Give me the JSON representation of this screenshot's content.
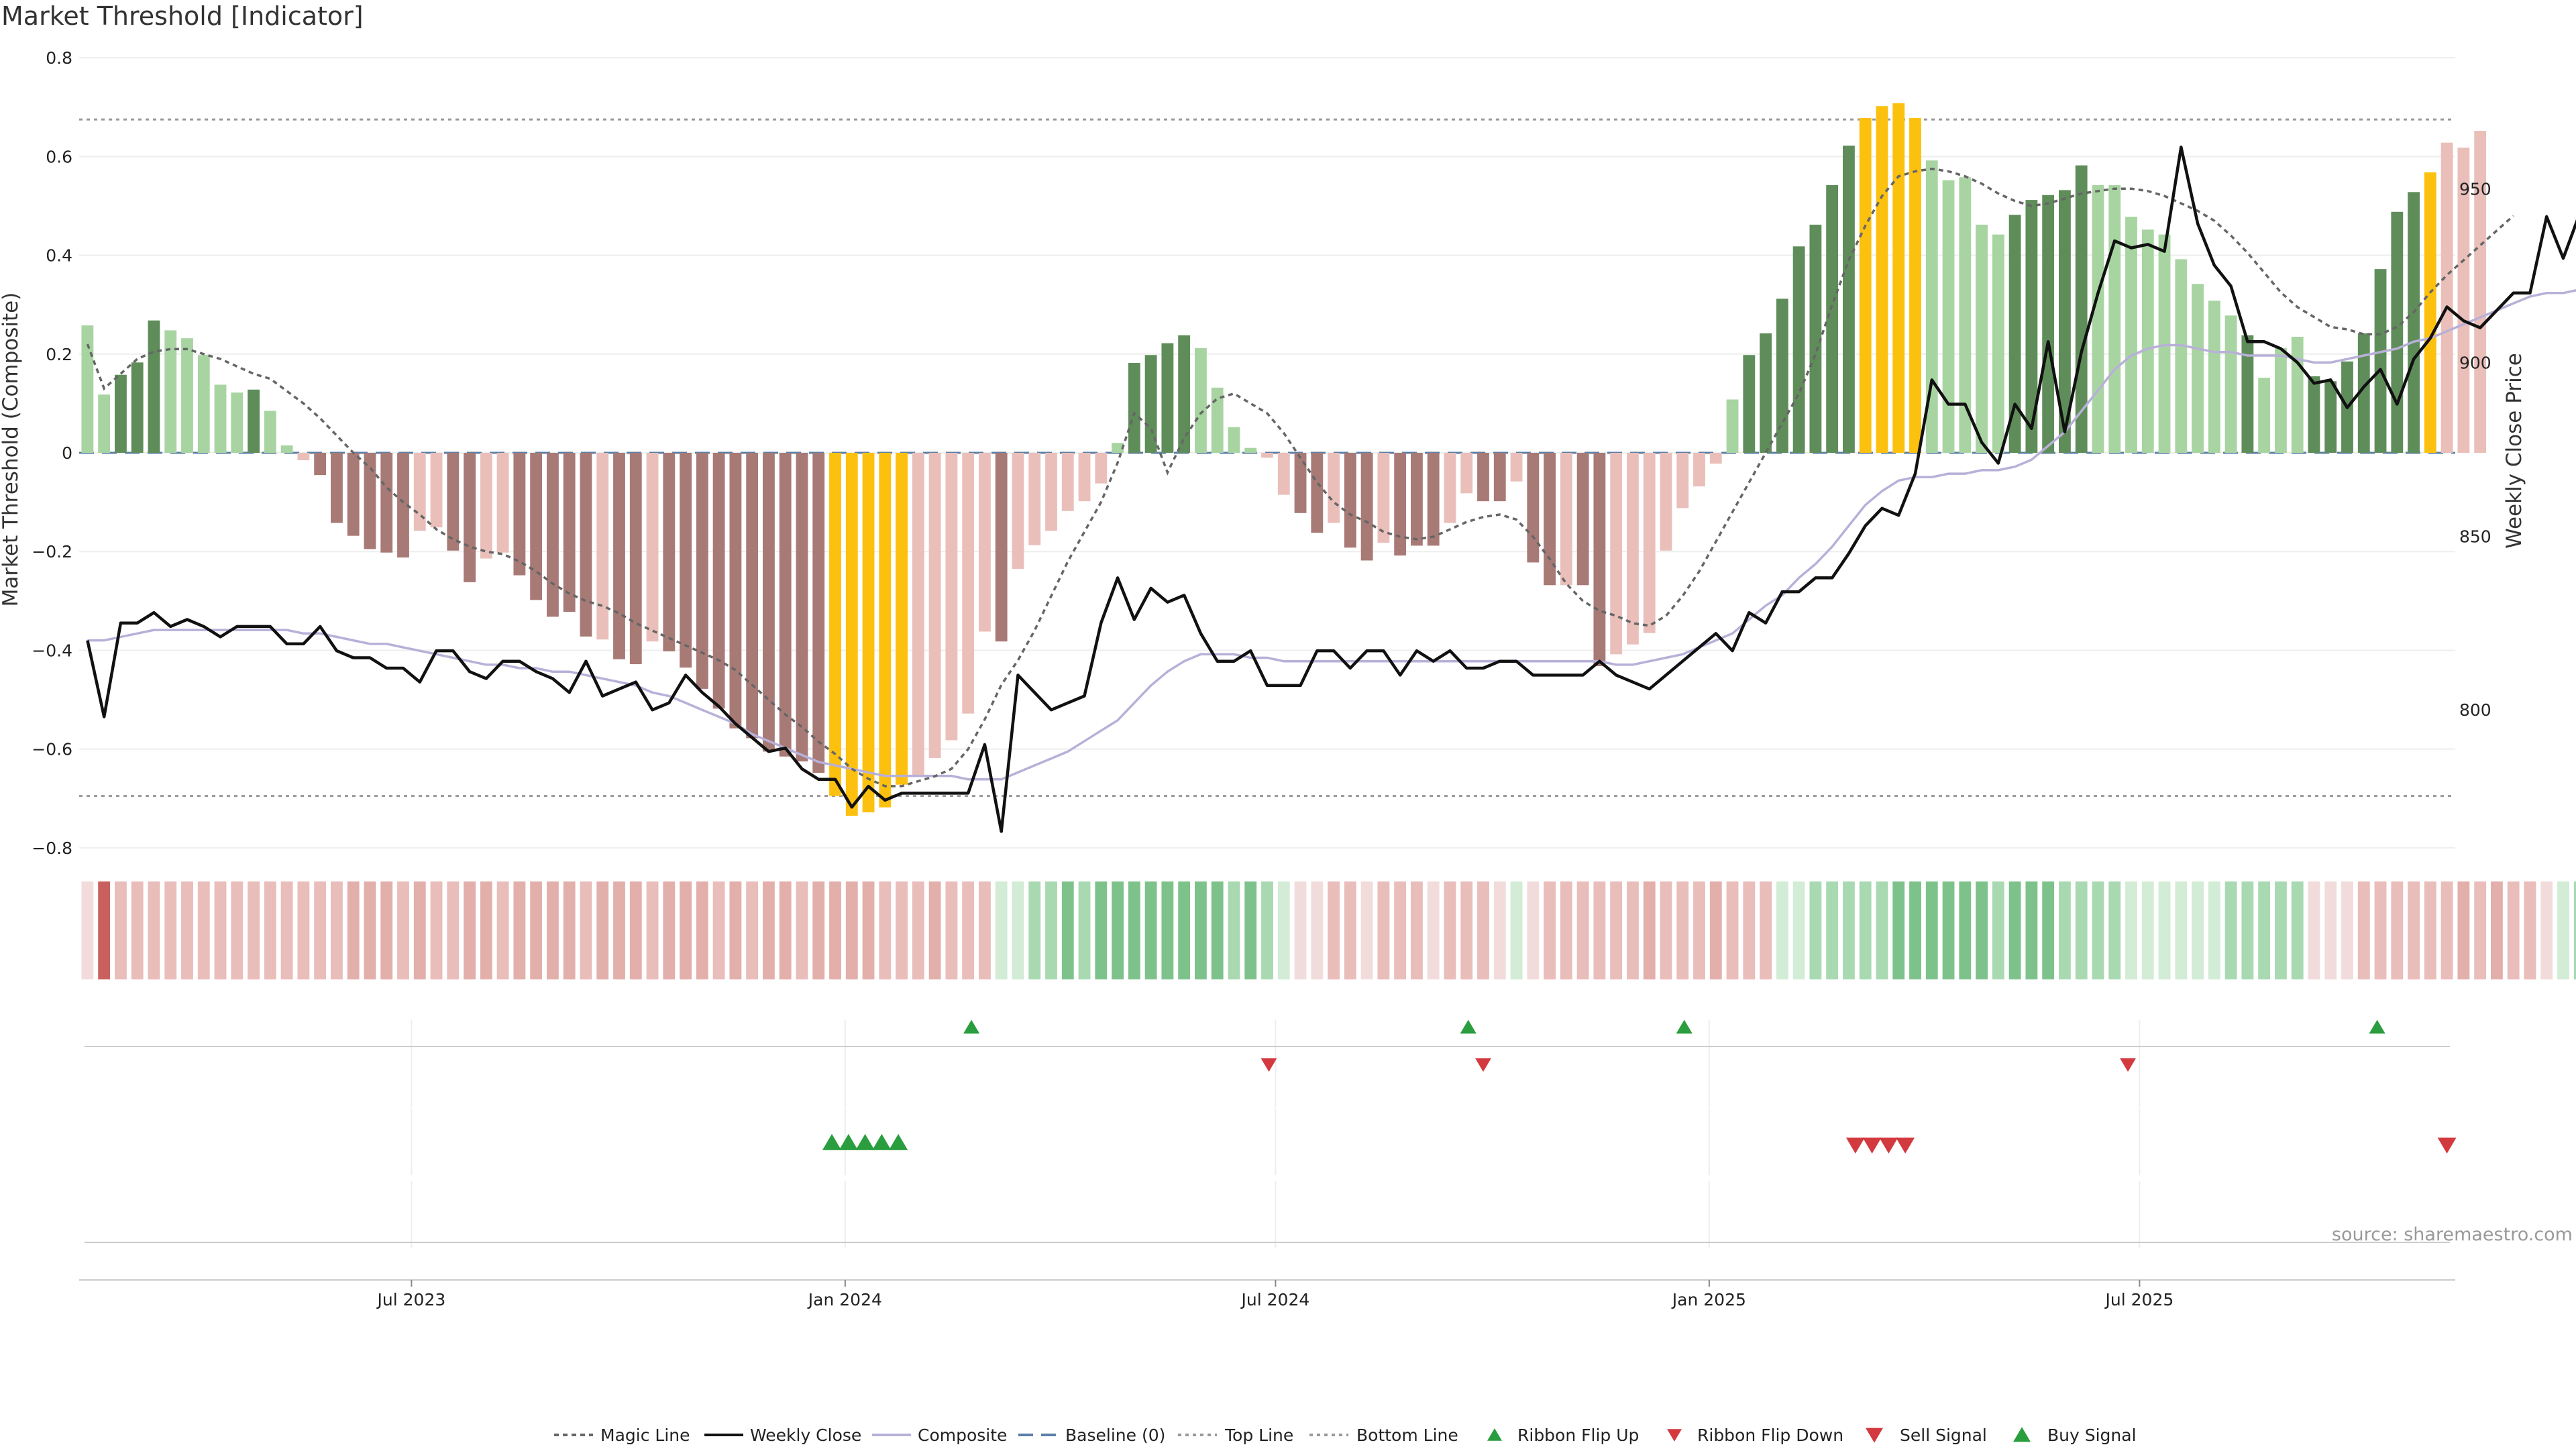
{
  "title": "Market Threshold [Indicator]",
  "source": "source: sharemaestro.com",
  "colors": {
    "pos_strong": "#5f8d5a",
    "pos_weak": "#a8d4a2",
    "neg_strong": "#a87a76",
    "neg_weak": "#eabfba",
    "extreme": "#fcc10f",
    "magic": "#666666",
    "price": "#111111",
    "composite": "#b8b0d8",
    "baseline": "#5b7fa6",
    "threshold": "#999999",
    "buy": "#2a9d3e",
    "sell": "#d33a3f",
    "ribbon_pos": [
      "#d2ecd5",
      "#a9d9b1",
      "#7ec28b"
    ],
    "ribbon_neg": [
      "#f2dcdb",
      "#e9bdba",
      "#c9605e"
    ]
  },
  "chart_data": {
    "type": "bar",
    "title": "Market Threshold [Indicator]",
    "ylabel": "Market Threshold (Composite)",
    "ylabel_right": "Weekly Close Price",
    "ylim": [
      -0.83,
      0.83
    ],
    "ylim_right": [
      756,
      992
    ],
    "yticks": [
      "0.8",
      "0.6",
      "0.4",
      "0.2",
      "0",
      "−0.2",
      "−0.4",
      "−0.6",
      "−0.8"
    ],
    "yticks_right": [
      "950",
      "900",
      "850",
      "800"
    ],
    "x_start_week": 0,
    "x_end_week": 142,
    "xticks": [
      {
        "label": "Jul 2023",
        "week": 19.5
      },
      {
        "label": "Jan 2024",
        "week": 45.6
      },
      {
        "label": "Jul 2024",
        "week": 71.5
      },
      {
        "label": "Jan 2025",
        "week": 97.6
      },
      {
        "label": "Jul 2025",
        "week": 123.5
      }
    ],
    "threshold_lines": {
      "top": 0.675,
      "bottom": -0.695,
      "baseline": 0
    },
    "composite": [
      0.258,
      0.118,
      0.158,
      0.183,
      0.268,
      0.248,
      0.232,
      0.198,
      0.138,
      0.122,
      0.128,
      0.085,
      0.015,
      -0.015,
      -0.045,
      -0.142,
      -0.168,
      -0.195,
      -0.202,
      -0.212,
      -0.158,
      -0.151,
      -0.198,
      -0.262,
      -0.214,
      -0.202,
      -0.248,
      -0.298,
      -0.332,
      -0.322,
      -0.372,
      -0.378,
      -0.418,
      -0.428,
      -0.382,
      -0.402,
      -0.435,
      -0.478,
      -0.518,
      -0.558,
      -0.578,
      -0.605,
      -0.615,
      -0.625,
      -0.648,
      -0.695,
      -0.735,
      -0.728,
      -0.718,
      -0.672,
      -0.655,
      -0.618,
      -0.582,
      -0.528,
      -0.362,
      -0.382,
      -0.235,
      -0.187,
      -0.158,
      -0.118,
      -0.098,
      -0.062,
      0.02,
      0.182,
      0.198,
      0.222,
      0.238,
      0.212,
      0.132,
      0.052,
      0.01,
      -0.01,
      -0.085,
      -0.122,
      -0.162,
      -0.142,
      -0.192,
      -0.218,
      -0.182,
      -0.208,
      -0.188,
      -0.188,
      -0.142,
      -0.082,
      -0.098,
      -0.098,
      -0.058,
      -0.222,
      -0.268,
      -0.268,
      -0.268,
      -0.432,
      -0.408,
      -0.388,
      -0.365,
      -0.198,
      -0.112,
      -0.068,
      -0.022,
      0.108,
      0.198,
      0.242,
      0.312,
      0.418,
      0.462,
      0.542,
      0.622,
      0.678,
      0.702,
      0.708,
      0.678,
      0.592,
      0.552,
      0.558,
      0.462,
      0.442,
      0.482,
      0.512,
      0.522,
      0.532,
      0.582,
      0.542,
      0.542,
      0.478,
      0.452,
      0.442,
      0.392,
      0.342,
      0.308,
      0.278,
      0.238,
      0.152,
      0.212,
      0.235,
      0.155,
      0.145,
      0.185,
      0.242,
      0.372,
      0.488,
      0.528,
      0.568,
      0.628,
      0.618,
      0.652
    ],
    "bar_class": [
      "pw",
      "pw",
      "ps",
      "ps",
      "ps",
      "pw",
      "pw",
      "pw",
      "pw",
      "pw",
      "ps",
      "pw",
      "pw",
      "nw",
      "ns",
      "ns",
      "ns",
      "ns",
      "ns",
      "ns",
      "nw",
      "nw",
      "ns",
      "ns",
      "nw",
      "nw",
      "ns",
      "ns",
      "ns",
      "ns",
      "ns",
      "nw",
      "ns",
      "ns",
      "nw",
      "ns",
      "ns",
      "ns",
      "ns",
      "ns",
      "ns",
      "ns",
      "ns",
      "ns",
      "ns",
      "x",
      "x",
      "x",
      "x",
      "x",
      "nw",
      "nw",
      "nw",
      "nw",
      "nw",
      "ns",
      "nw",
      "nw",
      "nw",
      "nw",
      "nw",
      "nw",
      "pw",
      "ps",
      "ps",
      "ps",
      "ps",
      "pw",
      "pw",
      "pw",
      "pw",
      "nw",
      "nw",
      "ns",
      "ns",
      "nw",
      "ns",
      "ns",
      "nw",
      "ns",
      "ns",
      "ns",
      "nw",
      "nw",
      "ns",
      "ns",
      "nw",
      "ns",
      "ns",
      "nw",
      "ns",
      "ns",
      "nw",
      "nw",
      "nw",
      "nw",
      "nw",
      "nw",
      "nw",
      "pw",
      "ps",
      "ps",
      "ps",
      "ps",
      "ps",
      "ps",
      "ps",
      "x",
      "x",
      "x",
      "x",
      "pw",
      "pw",
      "pw",
      "pw",
      "pw",
      "ps",
      "ps",
      "ps",
      "ps",
      "ps",
      "pw",
      "pw",
      "pw",
      "pw",
      "pw",
      "pw",
      "pw",
      "pw",
      "pw",
      "ps",
      "pw",
      "pw",
      "pw",
      "ps",
      "ps",
      "ps",
      "ps",
      "ps",
      "ps",
      "ps",
      "x"
    ],
    "magic_line": [
      0.22,
      0.13,
      0.16,
      0.19,
      0.205,
      0.21,
      0.21,
      0.2,
      0.19,
      0.175,
      0.16,
      0.15,
      0.125,
      0.1,
      0.07,
      0.035,
      0.0,
      -0.03,
      -0.07,
      -0.1,
      -0.125,
      -0.155,
      -0.175,
      -0.19,
      -0.2,
      -0.205,
      -0.22,
      -0.24,
      -0.265,
      -0.285,
      -0.3,
      -0.31,
      -0.325,
      -0.345,
      -0.36,
      -0.375,
      -0.39,
      -0.405,
      -0.42,
      -0.44,
      -0.47,
      -0.5,
      -0.53,
      -0.555,
      -0.585,
      -0.61,
      -0.64,
      -0.66,
      -0.675,
      -0.675,
      -0.665,
      -0.655,
      -0.64,
      -0.6,
      -0.54,
      -0.47,
      -0.42,
      -0.36,
      -0.29,
      -0.22,
      -0.16,
      -0.1,
      -0.02,
      0.08,
      0.05,
      -0.04,
      0.03,
      0.08,
      0.11,
      0.12,
      0.1,
      0.08,
      0.04,
      -0.01,
      -0.06,
      -0.1,
      -0.125,
      -0.14,
      -0.16,
      -0.17,
      -0.175,
      -0.17,
      -0.155,
      -0.14,
      -0.13,
      -0.125,
      -0.135,
      -0.17,
      -0.215,
      -0.265,
      -0.3,
      -0.32,
      -0.33,
      -0.345,
      -0.35,
      -0.33,
      -0.29,
      -0.24,
      -0.18,
      -0.12,
      -0.06,
      0.0,
      0.06,
      0.12,
      0.2,
      0.3,
      0.39,
      0.46,
      0.52,
      0.56,
      0.57,
      0.575,
      0.57,
      0.56,
      0.545,
      0.525,
      0.51,
      0.5,
      0.505,
      0.515,
      0.525,
      0.53,
      0.535,
      0.535,
      0.53,
      0.52,
      0.505,
      0.49,
      0.47,
      0.44,
      0.405,
      0.365,
      0.325,
      0.295,
      0.275,
      0.255,
      0.25,
      0.24,
      0.24,
      0.255,
      0.285,
      0.325,
      0.36,
      0.39,
      0.42,
      0.45,
      0.48
    ],
    "weekly_close": [
      820,
      798,
      825,
      825,
      828,
      824,
      826,
      824,
      821,
      824,
      824,
      824,
      819,
      819,
      824,
      817,
      815,
      815,
      812,
      812,
      808,
      817,
      817,
      811,
      809,
      814,
      814,
      811,
      809,
      805,
      814,
      804,
      806,
      808,
      800,
      802,
      810,
      805,
      801,
      796,
      792,
      788,
      789,
      783,
      780,
      780,
      772,
      778,
      774,
      776,
      776,
      776,
      776,
      776,
      790,
      765,
      810,
      805,
      800,
      802,
      804,
      825,
      838,
      826,
      835,
      831,
      833,
      822,
      814,
      814,
      817,
      807,
      807,
      807,
      817,
      817,
      812,
      817,
      817,
      810,
      817,
      814,
      817,
      812,
      812,
      814,
      814,
      810,
      810,
      810,
      810,
      814,
      810,
      808,
      806,
      810,
      814,
      818,
      822,
      817,
      828,
      825,
      834,
      834,
      838,
      838,
      845,
      853,
      858,
      856,
      868,
      895,
      888,
      888,
      877,
      871,
      888,
      881,
      906,
      880,
      903,
      920,
      935,
      933,
      934,
      932,
      962,
      940,
      928,
      922,
      906,
      906,
      904,
      900,
      894,
      895,
      887,
      893,
      898,
      888,
      901,
      907,
      916,
      912,
      910,
      915,
      920,
      920,
      942,
      930,
      943,
      941,
      947
    ],
    "composite_smooth": [
      820,
      820,
      821,
      822,
      823,
      823,
      823,
      823,
      823,
      823,
      823,
      823,
      823,
      822,
      822,
      821,
      820,
      819,
      819,
      818,
      817,
      816,
      815,
      814,
      813,
      813,
      812,
      812,
      811,
      811,
      810,
      809,
      808,
      807,
      805,
      804,
      802,
      800,
      798,
      796,
      793,
      791,
      789,
      787,
      785,
      784,
      783,
      782,
      781,
      781,
      781,
      781,
      781,
      780,
      780,
      780,
      782,
      784,
      786,
      788,
      791,
      794,
      797,
      802,
      807,
      811,
      814,
      816,
      816,
      816,
      815,
      815,
      814,
      814,
      814,
      814,
      814,
      814,
      814,
      814,
      814,
      814,
      814,
      814,
      814,
      814,
      814,
      814,
      814,
      814,
      814,
      814,
      813,
      813,
      814,
      815,
      816,
      818,
      820,
      822,
      826,
      830,
      833,
      838,
      842,
      847,
      853,
      859,
      863,
      866,
      867,
      867,
      868,
      868,
      869,
      869,
      870,
      872,
      876,
      880,
      886,
      892,
      898,
      902,
      904,
      905,
      905,
      904,
      903,
      903,
      902,
      902,
      902,
      901,
      900,
      900,
      901,
      902,
      903,
      904,
      906,
      907,
      909,
      911,
      913,
      915,
      917,
      919,
      920,
      920,
      921
    ],
    "ribbon": [
      0,
      3,
      1,
      1,
      1,
      1,
      1,
      1,
      1,
      1,
      1,
      1,
      1,
      1,
      1,
      1,
      2,
      2,
      2,
      1,
      2,
      1,
      1,
      2,
      2,
      1,
      2,
      2,
      2,
      2,
      1,
      2,
      2,
      2,
      1,
      2,
      2,
      2,
      1,
      2,
      1,
      2,
      2,
      1,
      2,
      2,
      2,
      2,
      1,
      1,
      1,
      2,
      1,
      1,
      1,
      4,
      4,
      5,
      5,
      6,
      5,
      6,
      6,
      6,
      6,
      6,
      6,
      6,
      6,
      5,
      6,
      5,
      4,
      0,
      0,
      1,
      1,
      0,
      1,
      1,
      1,
      0,
      1,
      1,
      1,
      0,
      4,
      0,
      1,
      1,
      1,
      1,
      1,
      1,
      2,
      1,
      1,
      1,
      2,
      1,
      1,
      1,
      4,
      4,
      5,
      5,
      5,
      5,
      5,
      6,
      6,
      6,
      6,
      6,
      6,
      5,
      6,
      6,
      6,
      5,
      5,
      5,
      5,
      4,
      4,
      4,
      4,
      4,
      4,
      5,
      5,
      5,
      5,
      5,
      0,
      0,
      0,
      1,
      1,
      1,
      1,
      1,
      1,
      2,
      1,
      2,
      1,
      1,
      0,
      4,
      5,
      5,
      5
    ],
    "ribbon_flip_up": [
      53.2,
      83.1,
      96.1,
      137.8
    ],
    "ribbon_flip_down": [
      71.1,
      84.0,
      122.8
    ],
    "buy_signal": [
      44.8,
      45.8,
      46.8,
      47.8,
      48.8
    ],
    "sell_signal": [
      106.4,
      107.4,
      108.4,
      109.4,
      142.0
    ],
    "legend": [
      "Magic Line",
      "Weekly Close",
      "Composite",
      "Baseline (0)",
      "Top Line",
      "Bottom Line",
      "Ribbon Flip Up",
      "Ribbon Flip Down",
      "Sell Signal",
      "Buy Signal"
    ]
  }
}
